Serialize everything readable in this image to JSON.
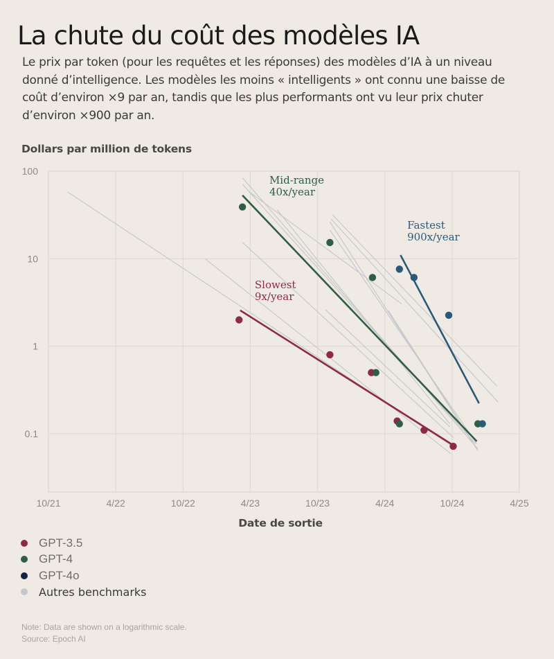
{
  "header": {
    "title": "La chute du coût des modèles IA",
    "subtitle": "Le prix par token (pour les requêtes et les réponses) des modèles d’IA à un niveau donné d’intelligence. Les modèles les moins « intelligents » ont connu une baisse de coût d’environ ×9 par an, tandis que les plus performants ont vu leur prix chuter d’environ ×900 par an."
  },
  "axes": {
    "ylabel": "Dollars par million de tokens",
    "xlabel": "Date de sortie"
  },
  "legend": [
    {
      "label": "GPT-3.5",
      "color": "#8e2a45"
    },
    {
      "label": "GPT-4",
      "color": "#2f5e44"
    },
    {
      "label": "GPT-4o",
      "color": "#14233f"
    },
    {
      "label": "Autres benchmarks",
      "color": "#c3c7cc"
    }
  ],
  "notes": {
    "note": "Note: Data are shown on a logarithmic scale.",
    "source": "Source: Epoch AI"
  },
  "colors": {
    "background": "#efebe4",
    "grid": "#e0dbd2",
    "gpt35": "#8e2a45",
    "gpt4": "#2f5e44",
    "gpt4o": "#2b5a78",
    "other": "#c3c7cc"
  },
  "chart_data": {
    "type": "scatter",
    "title": "La chute du coût des modèles IA",
    "xlabel": "Date de sortie",
    "ylabel": "Dollars par million de tokens",
    "yscale": "log",
    "ylim": [
      0.0216,
      100
    ],
    "xlim_months_since_oct21": [
      0,
      42
    ],
    "x_ticks": [
      "10/21",
      "4/22",
      "10/22",
      "4/23",
      "10/23",
      "4/24",
      "10/24",
      "4/25"
    ],
    "y_ticks": [
      {
        "label": "100",
        "value": 100
      },
      {
        "label": "10",
        "value": 10
      },
      {
        "label": "1",
        "value": 1
      },
      {
        "label": "0.1",
        "value": 0.1
      }
    ],
    "grid": true,
    "legend_position": "bottom-left",
    "series": [
      {
        "name": "GPT-3.5",
        "color": "#8e2a45",
        "points": [
          {
            "month": 17.0,
            "value": 2.0
          },
          {
            "month": 25.1,
            "value": 0.8
          },
          {
            "month": 28.8,
            "value": 0.5
          },
          {
            "month": 31.1,
            "value": 0.14
          },
          {
            "month": 33.5,
            "value": 0.11
          },
          {
            "month": 36.1,
            "value": 0.072
          }
        ]
      },
      {
        "name": "GPT-4",
        "color": "#2f5e44",
        "points": [
          {
            "month": 17.3,
            "value": 39
          },
          {
            "month": 25.1,
            "value": 15.3
          },
          {
            "month": 28.9,
            "value": 6.1
          },
          {
            "month": 29.2,
            "value": 0.5
          },
          {
            "month": 31.3,
            "value": 0.13
          },
          {
            "month": 38.3,
            "value": 0.13
          }
        ]
      },
      {
        "name": "GPT-4o",
        "color": "#2b5a78",
        "points": [
          {
            "month": 31.3,
            "value": 7.6
          },
          {
            "month": 32.6,
            "value": 6.1
          },
          {
            "month": 35.7,
            "value": 2.26
          },
          {
            "month": 38.7,
            "value": 0.13
          }
        ]
      }
    ],
    "trend_lines": [
      {
        "name": "Slowest",
        "rate": "9x/year",
        "color": "#8e2a45",
        "from": {
          "month": 17.1,
          "value": 2.57
        },
        "to": {
          "month": 36.1,
          "value": 0.074
        },
        "label_lines": [
          "Slowest",
          "9x/year"
        ],
        "label_pos": {
          "month": 18.4,
          "value": 4.6
        }
      },
      {
        "name": "Mid-range",
        "rate": "40x/year",
        "color": "#2f5e44",
        "from": {
          "month": 17.3,
          "value": 53
        },
        "to": {
          "month": 38.2,
          "value": 0.082
        },
        "label_lines": [
          "Mid-range",
          "40x/year"
        ],
        "label_pos": {
          "month": 19.7,
          "value": 72
        }
      },
      {
        "name": "Fastest",
        "rate": "900x/year",
        "color": "#2b5a78",
        "from": {
          "month": 31.4,
          "value": 11.0
        },
        "to": {
          "month": 38.4,
          "value": 0.223
        },
        "label_lines": [
          "Fastest",
          "900x/year"
        ],
        "label_pos": {
          "month": 32.0,
          "value": 22
        }
      }
    ],
    "other_benchmarks": [
      {
        "from": {
          "month": 1.7,
          "value": 58
        },
        "to": {
          "month": 36.1,
          "value": 0.071
        }
      },
      {
        "from": {
          "month": 14.0,
          "value": 9.9
        },
        "to": {
          "month": 35.9,
          "value": 0.059
        }
      },
      {
        "from": {
          "month": 17.3,
          "value": 84
        },
        "to": {
          "month": 38.3,
          "value": 0.067
        }
      },
      {
        "from": {
          "month": 17.3,
          "value": 71
        },
        "to": {
          "month": 38.1,
          "value": 0.077
        }
      },
      {
        "from": {
          "month": 17.3,
          "value": 15.4
        },
        "to": {
          "month": 36.1,
          "value": 0.091
        }
      },
      {
        "from": {
          "month": 20.4,
          "value": 36
        },
        "to": {
          "month": 35.8,
          "value": 0.13
        }
      },
      {
        "from": {
          "month": 25.3,
          "value": 32
        },
        "to": {
          "month": 40.0,
          "value": 0.35
        }
      },
      {
        "from": {
          "month": 25.2,
          "value": 28.5
        },
        "to": {
          "month": 40.1,
          "value": 0.23
        }
      },
      {
        "from": {
          "month": 25.1,
          "value": 26.4
        },
        "to": {
          "month": 38.3,
          "value": 0.064
        }
      },
      {
        "from": {
          "month": 25.1,
          "value": 21.3
        },
        "to": {
          "month": 38.2,
          "value": 0.077
        }
      },
      {
        "from": {
          "month": 30.3,
          "value": 2.57
        },
        "to": {
          "month": 38.2,
          "value": 0.068
        }
      },
      {
        "from": {
          "month": 24.7,
          "value": 2.62
        },
        "to": {
          "month": 35.8,
          "value": 0.12
        }
      },
      {
        "from": {
          "month": 17.9,
          "value": 58
        },
        "to": {
          "month": 31.5,
          "value": 3.05
        }
      }
    ]
  }
}
